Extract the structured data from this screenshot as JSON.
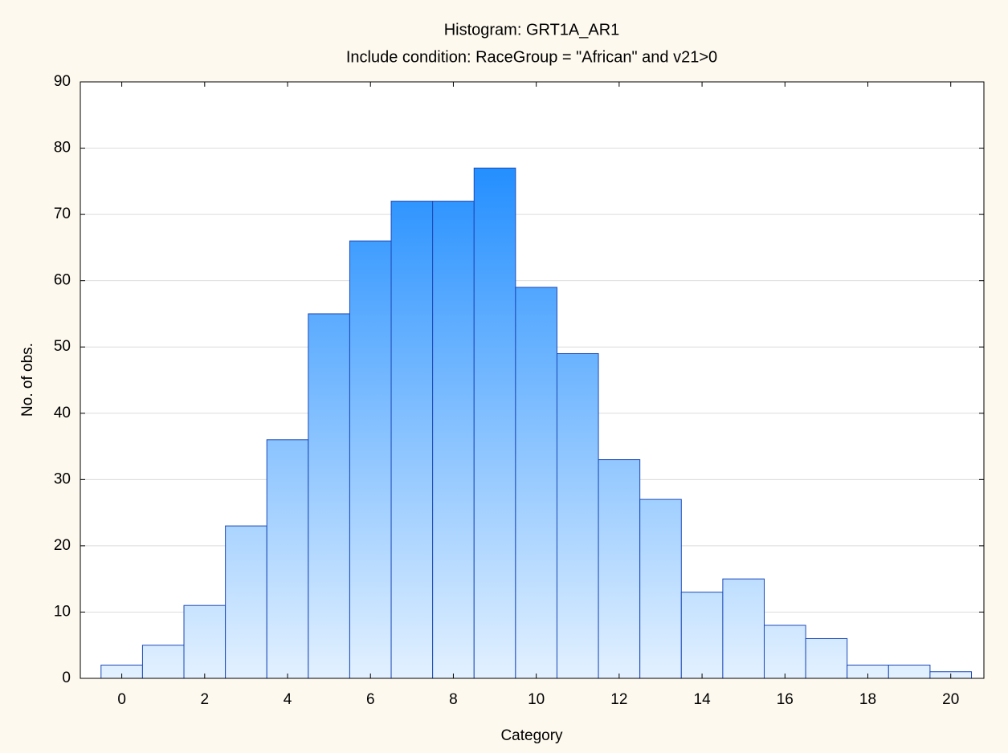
{
  "chart_data": {
    "type": "histogram",
    "title": "Histogram: GRT1A_AR1",
    "subtitle": "Include condition: RaceGroup = \"African\" and v21>0",
    "xlabel": "Category",
    "ylabel": "No. of obs.",
    "bins": [
      -0.5,
      0.5,
      1.5,
      2.5,
      3.5,
      4.5,
      5.5,
      6.5,
      7.5,
      8.5,
      9.5,
      10.5,
      11.5,
      12.5,
      13.5,
      14.5,
      15.5,
      16.5,
      17.5,
      18.5,
      19.5,
      20.5
    ],
    "values": [
      2,
      5,
      11,
      23,
      36,
      55,
      66,
      72,
      72,
      77,
      59,
      49,
      33,
      27,
      13,
      15,
      8,
      6,
      2,
      2,
      1
    ],
    "color": "#1e8cff",
    "xlim": [
      -1,
      20.8
    ],
    "xticks": [
      0,
      2,
      4,
      6,
      8,
      10,
      12,
      14,
      16,
      18,
      20
    ],
    "ylim": [
      0,
      90
    ],
    "yticks": [
      0,
      10,
      20,
      30,
      40,
      50,
      60,
      70,
      80,
      90
    ],
    "grid": true
  }
}
